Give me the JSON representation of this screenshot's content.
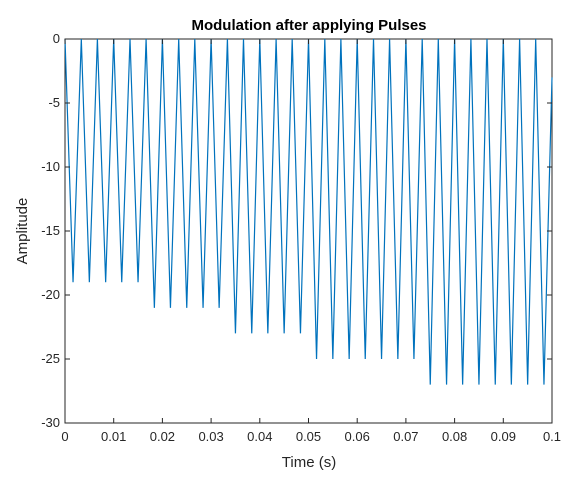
{
  "chart_data": {
    "type": "line",
    "title": "Modulation after applying Pulses",
    "xlabel": "Time (s)",
    "ylabel": "Amplitude",
    "xlim": [
      0,
      0.1
    ],
    "ylim": [
      -30,
      0
    ],
    "xticks": [
      0,
      0.01,
      0.02,
      0.03,
      0.04,
      0.05,
      0.06,
      0.07,
      0.08,
      0.09,
      0.1
    ],
    "xtick_labels": [
      "0",
      "0.01",
      "0.02",
      "0.03",
      "0.04",
      "0.05",
      "0.06",
      "0.07",
      "0.08",
      "0.09",
      "0.1"
    ],
    "yticks": [
      -30,
      -25,
      -20,
      -15,
      -10,
      -5,
      0
    ],
    "ytick_labels": [
      "-30",
      "-25",
      "-20",
      "-15",
      "-10",
      "-5",
      "0"
    ],
    "grid": false,
    "box": true,
    "series": [
      {
        "color": "#0072bd",
        "x": [
          0,
          0.00165,
          0.00335,
          0.005,
          0.00665,
          0.00835,
          0.01,
          0.01165,
          0.01335,
          0.015,
          0.01665,
          0.01835,
          0.02,
          0.02165,
          0.02335,
          0.025,
          0.02665,
          0.02835,
          0.03,
          0.03165,
          0.03335,
          0.035,
          0.03665,
          0.03835,
          0.04,
          0.04165,
          0.04335,
          0.045,
          0.04665,
          0.04835,
          0.05,
          0.05165,
          0.05335,
          0.055,
          0.05665,
          0.05835,
          0.06,
          0.06165,
          0.06335,
          0.065,
          0.06665,
          0.06835,
          0.07,
          0.07165,
          0.07335,
          0.075,
          0.07665,
          0.07835,
          0.08,
          0.08165,
          0.08335,
          0.085,
          0.08665,
          0.08835,
          0.09,
          0.09165,
          0.09335,
          0.095,
          0.09665,
          0.09835,
          0.1
        ],
        "y": [
          0,
          -19,
          0,
          -19,
          0,
          -19,
          0,
          -19,
          0,
          -19,
          0,
          -21,
          0,
          -21,
          0,
          -21,
          0,
          -21,
          0,
          -21,
          0,
          -23,
          0,
          -23,
          0,
          -23,
          0,
          -23,
          0,
          -23,
          0,
          -25,
          0,
          -25,
          0,
          -25,
          0,
          -25,
          0,
          -25,
          0,
          -25,
          0,
          -25,
          0,
          -27,
          0,
          -27,
          0,
          -27,
          0,
          -27,
          0,
          -27,
          0,
          -27,
          0,
          -27,
          0,
          -27,
          -3
        ]
      }
    ]
  }
}
